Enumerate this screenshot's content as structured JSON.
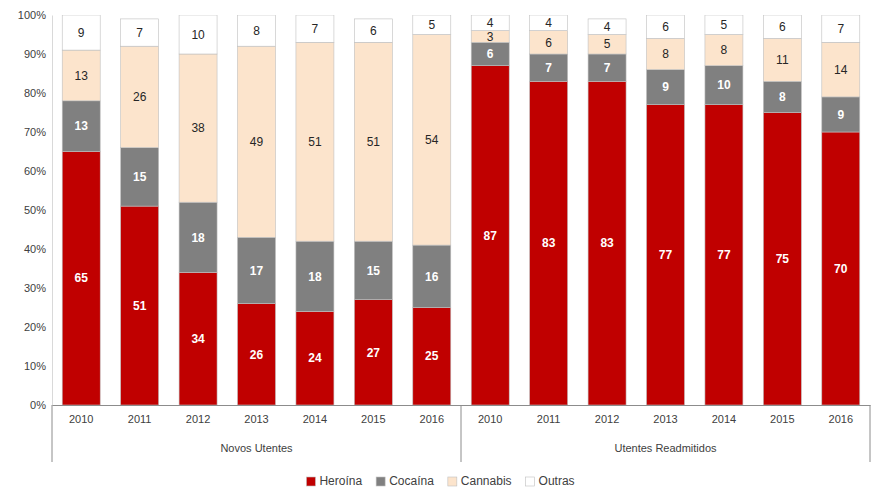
{
  "chart_data": {
    "type": "bar",
    "stacked": true,
    "data_labels": true,
    "grid": false,
    "legend": "bottom",
    "categories": [
      "2010",
      "2011",
      "2012",
      "2013",
      "2014",
      "2015",
      "2016",
      "2010",
      "2011",
      "2012",
      "2013",
      "2014",
      "2015",
      "2016"
    ],
    "groups": [
      {
        "name": "Novos Utentes",
        "count": 7
      },
      {
        "name": "Utentes Readmitidos",
        "count": 7
      }
    ],
    "series": [
      {
        "name": "Heroína",
        "color": "#C00000",
        "values": [
          65,
          51,
          34,
          26,
          24,
          27,
          25,
          87,
          83,
          83,
          77,
          77,
          75,
          70
        ]
      },
      {
        "name": "Cocaína",
        "color": "#808080",
        "values": [
          13,
          15,
          18,
          17,
          18,
          15,
          16,
          6,
          7,
          7,
          9,
          10,
          8,
          9
        ]
      },
      {
        "name": "Cannabis",
        "color": "#FCE4CC",
        "values": [
          13,
          26,
          38,
          49,
          51,
          51,
          54,
          3,
          6,
          5,
          8,
          8,
          11,
          14
        ]
      },
      {
        "name": "Outras",
        "color": "#FFFFFF",
        "values": [
          9,
          7,
          10,
          8,
          7,
          6,
          5,
          4,
          4,
          4,
          6,
          5,
          6,
          7
        ]
      }
    ],
    "ylim": [
      0,
      100
    ],
    "yticks": [
      {
        "value": 0,
        "label": "0%"
      },
      {
        "value": 10,
        "label": "10%"
      },
      {
        "value": 20,
        "label": "20%"
      },
      {
        "value": 30,
        "label": "30%"
      },
      {
        "value": 40,
        "label": "40%"
      },
      {
        "value": 50,
        "label": "50%"
      },
      {
        "value": 60,
        "label": "60%"
      },
      {
        "value": 70,
        "label": "70%"
      },
      {
        "value": 80,
        "label": "80%"
      },
      {
        "value": 90,
        "label": "90%"
      },
      {
        "value": 100,
        "label": "100%"
      }
    ]
  }
}
